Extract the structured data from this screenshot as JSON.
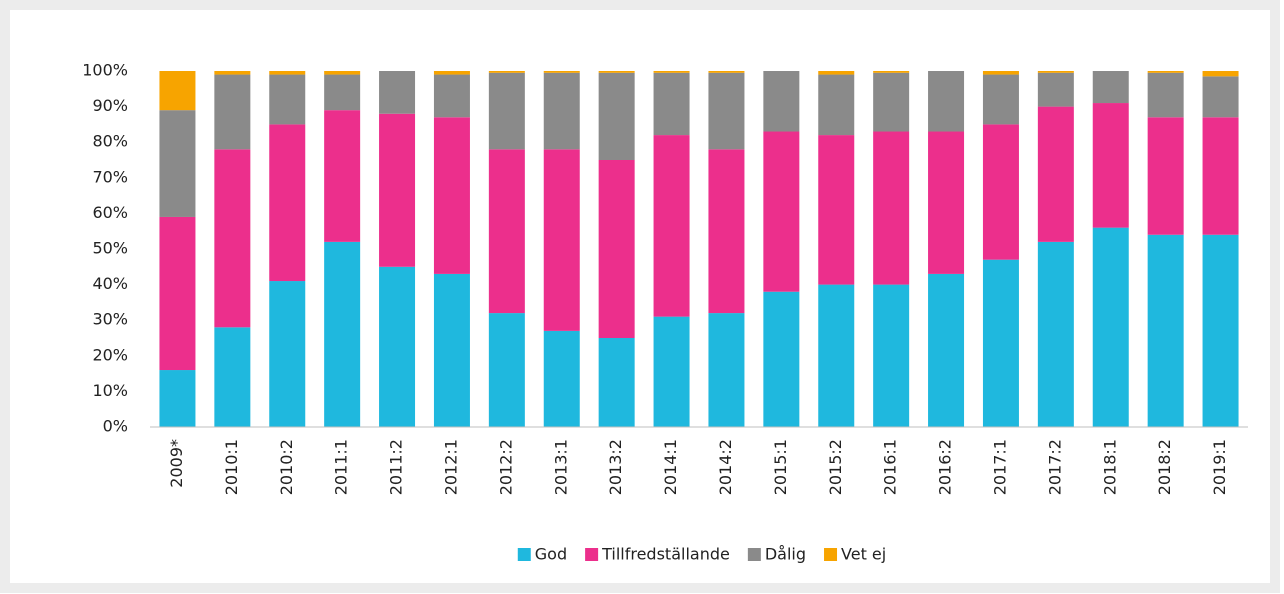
{
  "chart_data": {
    "type": "stacked_bar",
    "categories": [
      "2009*",
      "2010:1",
      "2010:2",
      "2011:1",
      "2011:2",
      "2012:1",
      "2012:2",
      "2013:1",
      "2013:2",
      "2014:1",
      "2014:2",
      "2015:1",
      "2015:2",
      "2016:1",
      "2016:2",
      "2017:1",
      "2017:2",
      "2018:1",
      "2018:2",
      "2019:1"
    ],
    "series": [
      {
        "name": "God",
        "color": "#1fb8de",
        "values": [
          16,
          28,
          41,
          52,
          45,
          43,
          32,
          27,
          25,
          31,
          32,
          38,
          40,
          40,
          43,
          47,
          52,
          56,
          54,
          54
        ]
      },
      {
        "name": "Tillfredställande",
        "color": "#ec2f8c",
        "values": [
          43,
          50,
          44,
          37,
          43,
          44,
          46,
          51,
          50,
          51,
          46,
          45,
          42,
          43,
          40,
          38,
          38,
          35,
          33,
          33
        ]
      },
      {
        "name": "Dålig",
        "color": "#8a8a8a",
        "values": [
          30,
          21,
          14,
          10,
          12,
          12,
          21.5,
          21.5,
          24.5,
          17.5,
          21.5,
          17,
          17,
          16.5,
          17,
          14,
          9.5,
          9,
          12.5,
          11.5
        ]
      },
      {
        "name": "Vet ej",
        "color": "#f7a400",
        "values": [
          11,
          1,
          1,
          1,
          0,
          1,
          0.5,
          0.5,
          0.5,
          0.5,
          0.5,
          0,
          1,
          0.5,
          0,
          1,
          0.5,
          0,
          0.5,
          1.5
        ]
      }
    ],
    "ylim": [
      0,
      100
    ],
    "yticks": [
      {
        "value": 0,
        "label": "0%"
      },
      {
        "value": 10,
        "label": "10%"
      },
      {
        "value": 20,
        "label": "20%"
      },
      {
        "value": 30,
        "label": "30%"
      },
      {
        "value": 40,
        "label": "40%"
      },
      {
        "value": 50,
        "label": "50%"
      },
      {
        "value": 60,
        "label": "60%"
      },
      {
        "value": 70,
        "label": "70%"
      },
      {
        "value": 80,
        "label": "80%"
      },
      {
        "value": 90,
        "label": "90%"
      },
      {
        "value": 100,
        "label": "100%"
      }
    ],
    "legend": "bottom"
  }
}
